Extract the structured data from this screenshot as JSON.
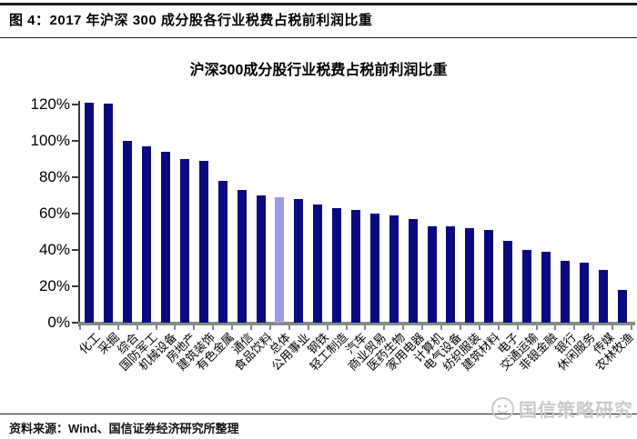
{
  "figure": {
    "header_title": "图 4：2017 年沪深 300 成分股各行业税费占税前利润比重"
  },
  "chart_data": {
    "type": "bar",
    "title": "沪深300成分股行业税费占税前利润比重",
    "categories": [
      "化工",
      "采掘",
      "综合",
      "国防军工",
      "机械设备",
      "房地产",
      "建筑装饰",
      "有色金属",
      "通信",
      "食品饮料",
      "总体",
      "公用事业",
      "钢铁",
      "轻工制造",
      "汽车",
      "商业贸易",
      "医药生物",
      "家用电器",
      "计算机",
      "电气设备",
      "纺织服装",
      "建筑材料",
      "电子",
      "交通运输",
      "非银金融",
      "银行",
      "休闲服务",
      "传媒",
      "农林牧渔"
    ],
    "values": [
      121,
      120.5,
      100,
      97,
      94,
      90,
      89,
      78,
      73,
      70,
      69,
      68,
      65,
      63,
      62,
      60,
      59,
      57,
      53,
      53,
      52,
      51,
      45,
      40,
      39,
      34,
      33,
      29,
      18
    ],
    "unit": "%",
    "xlabel": "",
    "ylabel": "",
    "ylim": [
      0,
      120
    ],
    "yticks": [
      0,
      20,
      40,
      60,
      80,
      100,
      120
    ],
    "ytick_suffix": "%",
    "grid": false,
    "legend": false,
    "highlight_category": "总体",
    "bar_color": "#0a0a80",
    "highlight_color": "#9c9ce8"
  },
  "footer": {
    "source": "资料来源：Wind、国信证券经济研究所整理",
    "watermark": "国信策略研究"
  },
  "colors": {
    "rule": "#1f1f1f",
    "axis_dark": "#3a3a3a",
    "axis_gray": "#898989",
    "watermark_gray": "#c9c9c9"
  }
}
